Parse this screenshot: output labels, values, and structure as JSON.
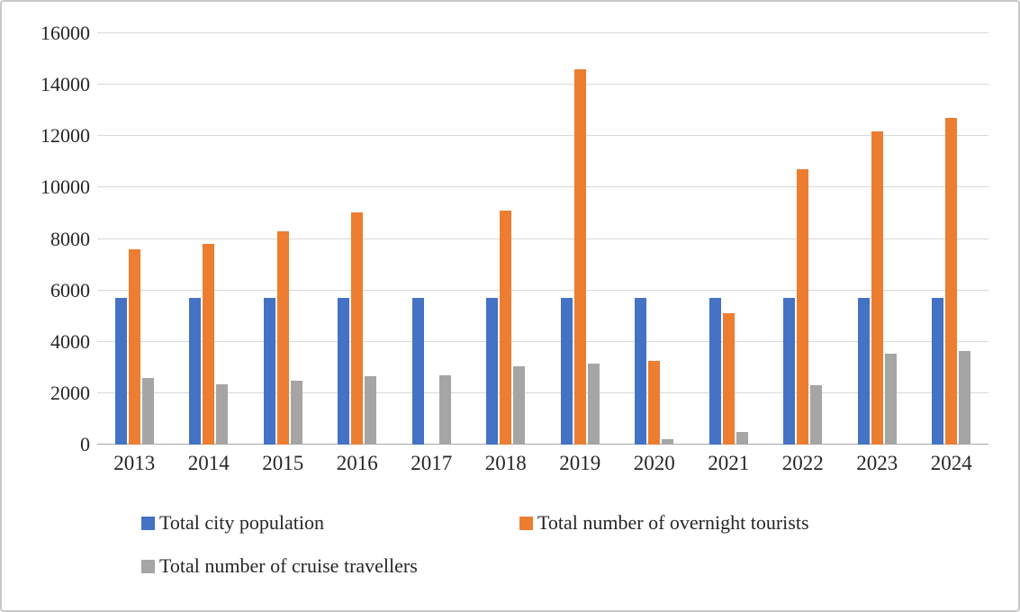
{
  "chart_data": {
    "type": "bar",
    "title": "",
    "xlabel": "",
    "ylabel": "",
    "categories": [
      "2013",
      "2014",
      "2015",
      "2016",
      "2017",
      "2018",
      "2019",
      "2020",
      "2021",
      "2022",
      "2023",
      "2024"
    ],
    "series": [
      {
        "name": "Total city population",
        "color": "#4472C4",
        "values": [
          5700,
          5700,
          5700,
          5700,
          5700,
          5700,
          5700,
          5700,
          5700,
          5700,
          5700,
          5700
        ]
      },
      {
        "name": "Total number of overnight tourists",
        "color": "#ED7D31",
        "values": [
          7600,
          7800,
          8300,
          9050,
          0,
          9100,
          14600,
          3250,
          5100,
          10700,
          12200,
          12700
        ]
      },
      {
        "name": "Total number of cruise travellers",
        "color": "#A5A5A5",
        "values": [
          2600,
          2350,
          2500,
          2650,
          2700,
          3050,
          3150,
          200,
          500,
          2300,
          3550,
          3650
        ]
      }
    ],
    "ylim": [
      0,
      16000
    ],
    "yticks": [
      0,
      2000,
      4000,
      6000,
      8000,
      10000,
      12000,
      14000,
      16000
    ],
    "grid": "horizontal",
    "legend_position": "bottom"
  }
}
